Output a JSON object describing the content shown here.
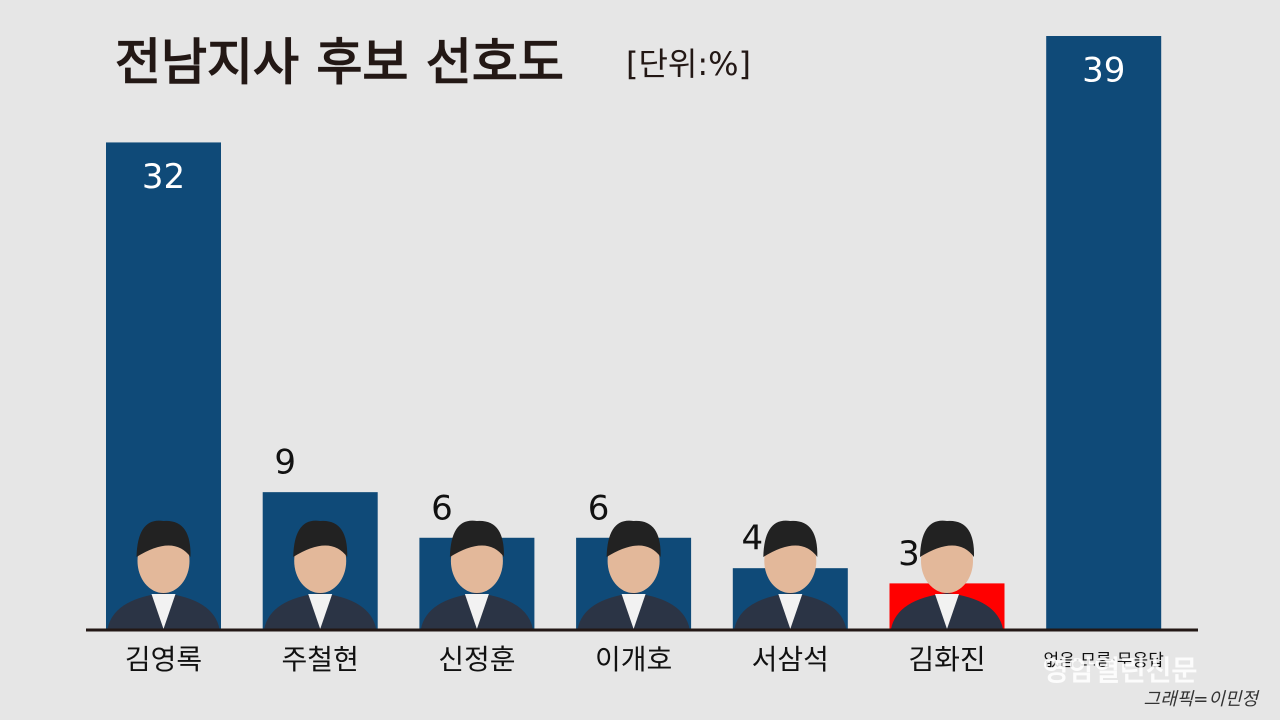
{
  "chart_data": {
    "type": "bar",
    "title": "전남지사 후보 선호도",
    "unit_label": "[단위:%]",
    "categories": [
      "김영록",
      "주철현",
      "신정훈",
      "이개호",
      "서삼석",
      "김화진",
      "없음·모름·무응답"
    ],
    "values": [
      32,
      9,
      6,
      6,
      4,
      3,
      39
    ],
    "colors": [
      "#0f4a78",
      "#0f4a78",
      "#0f4a78",
      "#0f4a78",
      "#0f4a78",
      "#ff0000",
      "#0f4a78"
    ],
    "source": "영암열린신문",
    "credit": "그래픽=이민정"
  }
}
